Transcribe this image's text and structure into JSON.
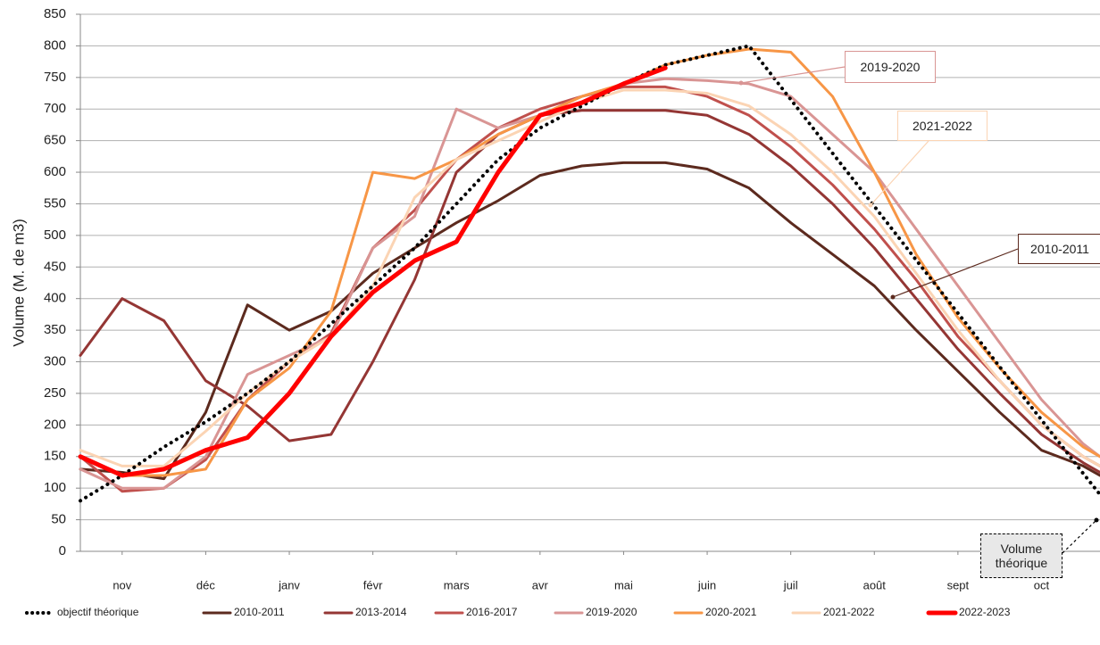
{
  "chart_data": {
    "type": "line",
    "y_label": "Volume (M. de m3)",
    "x": [
      0,
      0.5,
      1,
      1.5,
      2,
      2.5,
      3,
      3.5,
      4,
      4.5,
      5,
      5.5,
      6,
      6.5,
      7,
      7.5,
      8,
      8.5,
      9,
      9.5,
      10,
      10.5,
      11,
      11.5,
      12,
      12.2
    ],
    "xlim": [
      0,
      12.2
    ],
    "xticks": [
      {
        "value": 0.5,
        "label": "nov"
      },
      {
        "value": 1.5,
        "label": "déc"
      },
      {
        "value": 2.5,
        "label": "janv"
      },
      {
        "value": 3.5,
        "label": "févr"
      },
      {
        "value": 4.5,
        "label": "mars"
      },
      {
        "value": 5.5,
        "label": "avr"
      },
      {
        "value": 6.5,
        "label": "mai"
      },
      {
        "value": 7.5,
        "label": "juin"
      },
      {
        "value": 8.5,
        "label": "juil"
      },
      {
        "value": 9.5,
        "label": "août"
      },
      {
        "value": 10.5,
        "label": "sept"
      },
      {
        "value": 11.5,
        "label": "oct"
      }
    ],
    "ylim": [
      0,
      850
    ],
    "yticks": [
      0,
      50,
      100,
      150,
      200,
      250,
      300,
      350,
      400,
      450,
      500,
      550,
      600,
      650,
      700,
      750,
      800,
      850
    ],
    "grid": true,
    "legend": "bottom",
    "series": [
      {
        "name": "objectif théorique",
        "color": "#000000",
        "dotted": true,
        "values": [
          80,
          120,
          165,
          205,
          250,
          300,
          360,
          420,
          480,
          550,
          620,
          670,
          705,
          740,
          770,
          785,
          800,
          715,
          630,
          546,
          461,
          377,
          292,
          208,
          123,
          90
        ]
      },
      {
        "name": "2010-2011",
        "color": "#5c2a1e",
        "values": [
          130,
          125,
          115,
          220,
          390,
          350,
          380,
          440,
          480,
          520,
          555,
          595,
          610,
          615,
          615,
          605,
          575,
          520,
          470,
          420,
          350,
          285,
          220,
          160,
          135,
          120
        ]
      },
      {
        "name": "2013-2014",
        "color": "#943634",
        "values": [
          310,
          400,
          365,
          270,
          230,
          175,
          185,
          300,
          430,
          600,
          660,
          690,
          698,
          698,
          698,
          690,
          660,
          610,
          550,
          480,
          400,
          320,
          250,
          185,
          140,
          125
        ]
      },
      {
        "name": "2016-2017",
        "color": "#c0504d",
        "values": [
          150,
          95,
          100,
          145,
          240,
          300,
          345,
          480,
          540,
          620,
          670,
          700,
          720,
          735,
          735,
          720,
          690,
          640,
          580,
          510,
          430,
          340,
          270,
          200,
          150,
          135
        ]
      },
      {
        "name": "2019-2020",
        "color": "#d99594",
        "values": [
          130,
          100,
          100,
          150,
          280,
          310,
          340,
          480,
          530,
          700,
          670,
          690,
          720,
          740,
          748,
          745,
          740,
          720,
          660,
          600,
          510,
          420,
          330,
          240,
          170,
          150
        ]
      },
      {
        "name": "2020-2021",
        "color": "#f79646",
        "values": [
          150,
          120,
          120,
          130,
          240,
          290,
          380,
          600,
          590,
          620,
          660,
          690,
          720,
          740,
          770,
          785,
          795,
          790,
          720,
          600,
          470,
          370,
          290,
          220,
          165,
          150
        ]
      },
      {
        "name": "2021-2022",
        "color": "#fbd4b4",
        "values": [
          160,
          135,
          135,
          190,
          250,
          300,
          340,
          420,
          560,
          620,
          650,
          680,
          710,
          730,
          730,
          725,
          705,
          660,
          600,
          530,
          440,
          350,
          270,
          200,
          150,
          135
        ]
      },
      {
        "name": "2022-2023",
        "color": "#ff0000",
        "bold": true,
        "values": [
          150,
          120,
          130,
          160,
          180,
          250,
          340,
          410,
          460,
          490,
          600,
          690,
          710,
          740,
          765,
          null,
          null,
          null,
          null,
          null,
          null,
          null,
          null,
          null,
          null,
          null
        ]
      }
    ],
    "annotations": [
      {
        "text": "2019-2020",
        "color": "#d99594"
      },
      {
        "text": "2021-2022",
        "color": "#fbd4b4"
      },
      {
        "text": "2010-2011",
        "color": "#5c2a1e"
      },
      {
        "text": "Volume théorique",
        "color": "#000000"
      }
    ]
  }
}
